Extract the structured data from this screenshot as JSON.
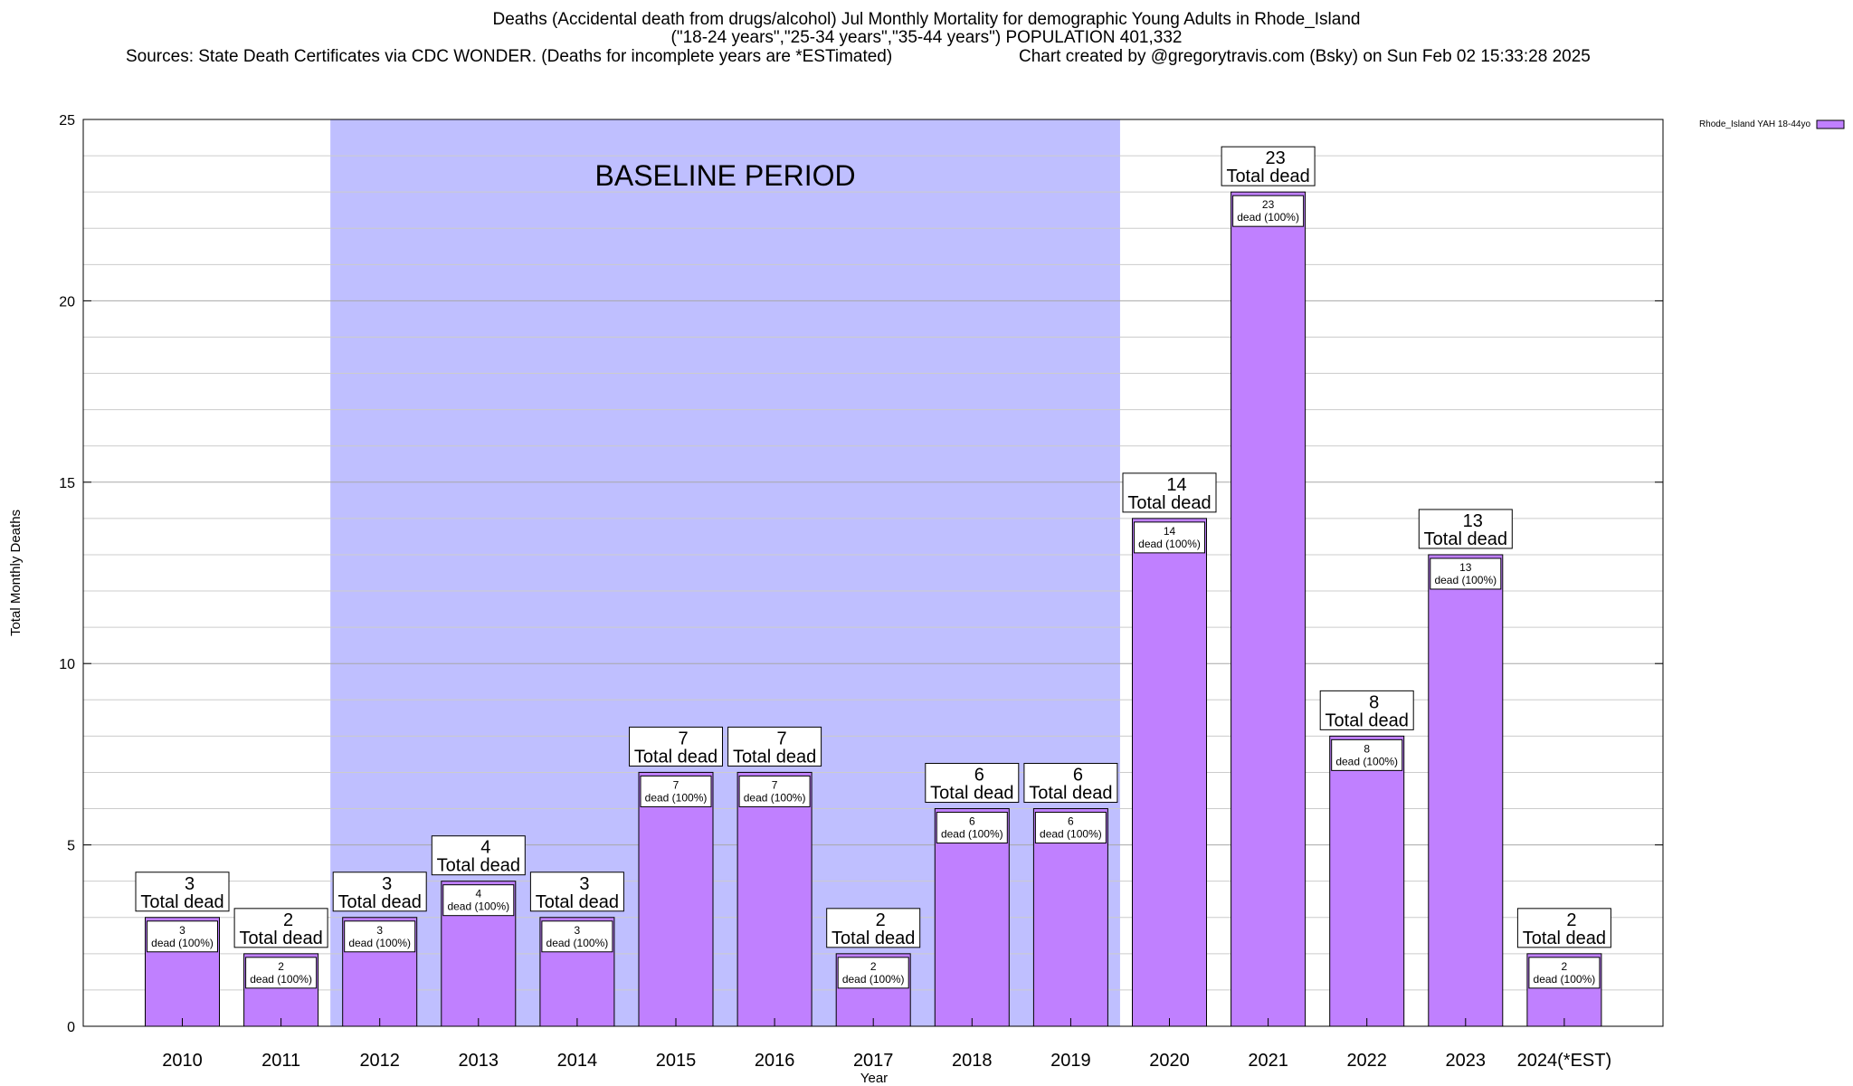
{
  "header": {
    "title_line1": "Deaths (Accidental death from drugs/alcohol) Jul Monthly Mortality for demographic Young Adults in Rhode_Island",
    "title_line2": "(\"18-24 years\",\"25-34 years\",\"35-44 years\") POPULATION 401,332",
    "sources": "Sources: State Death Certificates via CDC WONDER. (Deaths for incomplete years are *ESTimated)",
    "credit": "Chart created by @gregorytravis.com (Bsky) on Sun Feb 02 15:33:28 2025"
  },
  "chart_data": {
    "type": "bar",
    "categories": [
      "2010",
      "2011",
      "2012",
      "2013",
      "2014",
      "2015",
      "2016",
      "2017",
      "2018",
      "2019",
      "2020",
      "2021",
      "2022",
      "2023",
      "2024(*EST)"
    ],
    "series": [
      {
        "name": "Rhode_Island YAH 18-44yo",
        "values": [
          3,
          2,
          3,
          4,
          3,
          7,
          7,
          2,
          6,
          6,
          14,
          23,
          8,
          13,
          2
        ],
        "color": "#c080ff"
      }
    ],
    "xlabel": "Year",
    "ylabel": "Total Monthly Deaths",
    "ylim": [
      0,
      25
    ],
    "yticks": [
      0,
      5,
      10,
      15,
      20,
      25
    ],
    "grid": true,
    "legend_position": "top-right",
    "total_label_suffix": "Total dead",
    "inner_label_suffix": "dead (100%)",
    "baseline": {
      "label": "BASELINE PERIOD",
      "from": "2012",
      "to": "2019",
      "color": "#bfbfff"
    }
  }
}
